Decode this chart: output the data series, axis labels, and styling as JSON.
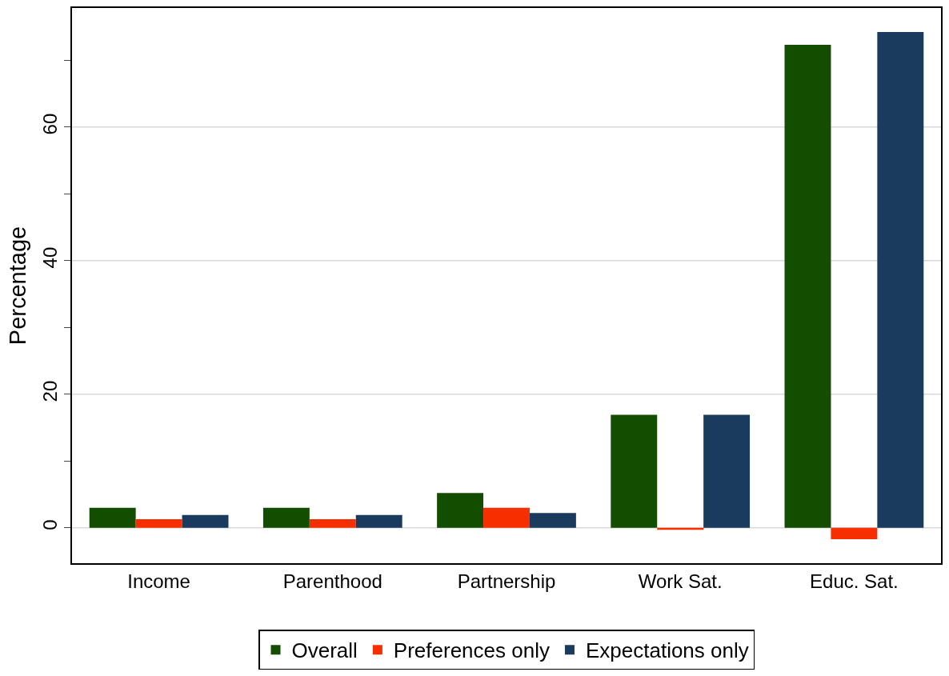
{
  "chart_data": {
    "type": "bar",
    "ylabel": "Percentage",
    "categories": [
      "Income",
      "Parenthood",
      "Partnership",
      "Work Sat.",
      "Educ. Sat."
    ],
    "series": [
      {
        "name": "Overall",
        "color": "#134d00",
        "values": [
          3.0,
          3.0,
          5.2,
          16.9,
          72.3
        ]
      },
      {
        "name": "Preferences only",
        "color": "#f72f00",
        "values": [
          1.3,
          1.3,
          3.0,
          -0.3,
          -1.7
        ]
      },
      {
        "name": "Expectations only",
        "color": "#1a3a5e",
        "values": [
          1.9,
          1.9,
          2.2,
          16.9,
          74.2
        ]
      }
    ],
    "ylim": [
      -5.3,
      77.8
    ],
    "yticks": [
      0,
      {
        "value": 10,
        "label": null
      },
      20,
      {
        "value": 30,
        "label": null
      },
      40,
      {
        "value": 50,
        "label": null
      },
      60,
      {
        "value": 70,
        "label": null
      }
    ],
    "grid": "y",
    "legend": "bottom"
  }
}
